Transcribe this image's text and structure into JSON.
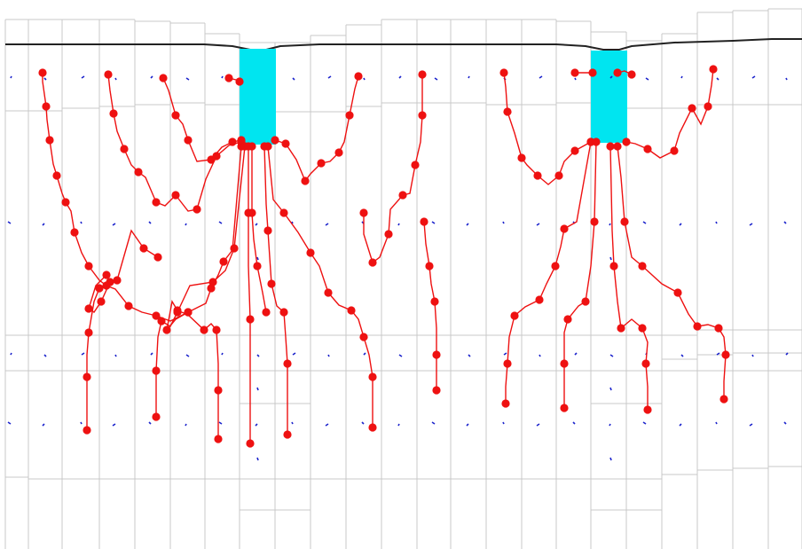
{
  "diagram": {
    "type": "particle-tracking-cross-section",
    "colors": {
      "background": "#ffffff",
      "grid_lines": "#c8c8c8",
      "ground_surface": "#222222",
      "well_fill": "#00e5f0",
      "pathline": "#ee1111",
      "marker": "#ee1111",
      "flow_vector": "#1a22cc"
    },
    "layers": [
      "ground-surface",
      "model-grid",
      "well-screens",
      "flow-vectors",
      "particle-pathlines",
      "particle-markers"
    ],
    "well_count": 2
  }
}
